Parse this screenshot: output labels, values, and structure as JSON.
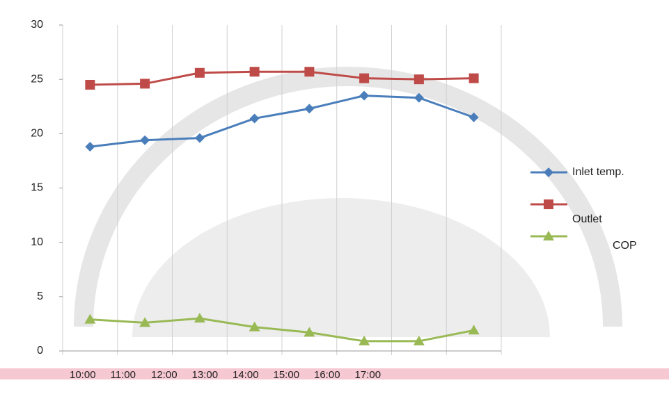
{
  "chart_data": {
    "type": "line",
    "categories": [
      "10:00",
      "11:00",
      "12:00",
      "13:00",
      "14:00",
      "15:00",
      "16:00",
      "17:00"
    ],
    "series": [
      {
        "name": "Inlet temp.",
        "color": "#4a7ebb",
        "marker": "diamond",
        "values": [
          18.8,
          19.4,
          19.6,
          21.4,
          22.3,
          23.5,
          23.3,
          21.5
        ]
      },
      {
        "name": "Outlet",
        "color": "#be4b48",
        "marker": "square",
        "values": [
          24.5,
          24.6,
          25.6,
          25.7,
          25.7,
          25.1,
          25.0,
          25.1
        ]
      },
      {
        "name": "COP",
        "color": "#98b954",
        "marker": "triangle",
        "values": [
          2.9,
          2.6,
          3.0,
          2.2,
          1.7,
          0.9,
          0.9,
          1.9
        ]
      }
    ],
    "ylim": [
      0,
      30
    ],
    "yticks": [
      0,
      5,
      10,
      15,
      20,
      25,
      30
    ],
    "grid": "x"
  }
}
